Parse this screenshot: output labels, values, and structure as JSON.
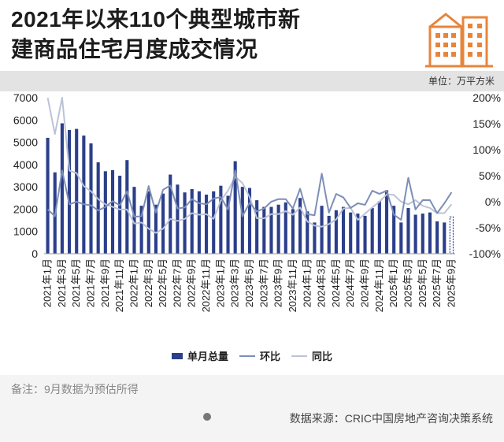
{
  "title_line1": "2021年以来110个典型城市新",
  "title_line2": "建商品住宅月度成交情况",
  "unit_label": "单位：万平方米",
  "note": "备注：9月数据为预估所得",
  "source": "数据来源：CRIC中国房地产咨询决策系统",
  "colors": {
    "bar": "#2b3f8a",
    "mom": "#7d8fb8",
    "yoy": "#bcc3d6",
    "accent": "#e8843a"
  },
  "chart_data": {
    "type": "bar",
    "categories": [
      "2021年1月",
      "2021年2月",
      "2021年3月",
      "2021年4月",
      "2021年5月",
      "2021年6月",
      "2021年7月",
      "2021年8月",
      "2021年9月",
      "2021年10月",
      "2021年11月",
      "2021年12月",
      "2022年1月",
      "2022年2月",
      "2022年3月",
      "2022年4月",
      "2022年5月",
      "2022年6月",
      "2022年7月",
      "2022年8月",
      "2022年9月",
      "2022年10月",
      "2022年11月",
      "2022年12月",
      "2023年1月",
      "2023年2月",
      "2023年3月",
      "2023年4月",
      "2023年5月",
      "2023年6月",
      "2023年7月",
      "2023年8月",
      "2023年9月",
      "2023年10月",
      "2023年11月",
      "2023年12月",
      "2024年1月",
      "2024年2月",
      "2024年3月",
      "2024年4月",
      "2024年5月",
      "2024年6月",
      "2024年7月",
      "2024年8月",
      "2024年9月",
      "2024年10月",
      "2024年11月",
      "2024年12月",
      "2025年1月",
      "2025年2月",
      "2025年3月",
      "2025年4月",
      "2025年5月",
      "2025年6月",
      "2025年7月",
      "2025年8月",
      "2025年9月"
    ],
    "x_tick_labels": [
      "2021年1月",
      "2021年3月",
      "2021年5月",
      "2021年7月",
      "2021年9月",
      "2021年11月",
      "2022年1月",
      "2022年3月",
      "2022年5月",
      "2022年7月",
      "2022年9月",
      "2022年11月",
      "2023年1月",
      "2023年3月",
      "2023年5月",
      "2023年7月",
      "2023年9月",
      "2023年11月",
      "2024年1月",
      "2024年3月",
      "2024年5月",
      "2024年7月",
      "2024年9月",
      "2024年11月",
      "2025年1月",
      "2025年3月",
      "2025年5月",
      "2025年7月",
      "2025年9月"
    ],
    "series": [
      {
        "name": "单月总量",
        "axis": "left",
        "values": [
          5200,
          3650,
          5850,
          5550,
          5600,
          5300,
          4950,
          4100,
          3700,
          3750,
          3500,
          4200,
          3000,
          2150,
          2800,
          2200,
          2700,
          3550,
          3100,
          2750,
          2900,
          2800,
          2650,
          2800,
          3050,
          2600,
          4150,
          3000,
          2950,
          2400,
          2100,
          2100,
          2200,
          2300,
          2000,
          2500,
          1900,
          1400,
          2150,
          1700,
          1950,
          2100,
          1850,
          1800,
          1700,
          2050,
          2350,
          2850,
          2150,
          1400,
          2050,
          1750,
          1800,
          1850,
          1450,
          1400,
          1650
        ]
      },
      {
        "name": "环比",
        "axis": "right",
        "values": [
          -15,
          -28,
          60,
          -5,
          0,
          -5,
          -7,
          -17,
          -10,
          1,
          -7,
          20,
          -29,
          -28,
          30,
          -21,
          23,
          31,
          -13,
          -11,
          5,
          -3,
          -5,
          6,
          9,
          -15,
          60,
          -28,
          -2,
          -19,
          -13,
          0,
          5,
          5,
          -13,
          25,
          -24,
          -26,
          54,
          -21,
          15,
          8,
          -12,
          -3,
          -6,
          21,
          15,
          21,
          -25,
          -35,
          46,
          -15,
          3,
          3,
          -22,
          -3,
          18
        ]
      },
      {
        "name": "同比",
        "axis": "right",
        "values": [
          200,
          130,
          200,
          60,
          55,
          30,
          20,
          5,
          -5,
          -10,
          -15,
          -15,
          -42,
          -40,
          -52,
          -60,
          -52,
          -33,
          -37,
          -33,
          -22,
          -25,
          -24,
          -33,
          2,
          21,
          48,
          36,
          9,
          -32,
          -32,
          -24,
          -24,
          -18,
          -25,
          -11,
          -38,
          -46,
          -48,
          -43,
          -34,
          -13,
          -12,
          -35,
          -23,
          -11,
          0,
          14,
          13,
          0,
          -5,
          3,
          -8,
          -12,
          -22,
          -22,
          -5
        ]
      }
    ],
    "y_left": {
      "min": 0,
      "max": 7000,
      "ticks": [
        0,
        1000,
        2000,
        3000,
        4000,
        5000,
        6000,
        7000
      ]
    },
    "y_right": {
      "min": -100,
      "max": 200,
      "ticks": [
        "-100%",
        "-50%",
        "0%",
        "50%",
        "100%",
        "150%",
        "200%"
      ]
    },
    "estimated_last_bar": true,
    "legend": [
      "单月总量",
      "环比",
      "同比"
    ],
    "legend_position": "bottom"
  }
}
